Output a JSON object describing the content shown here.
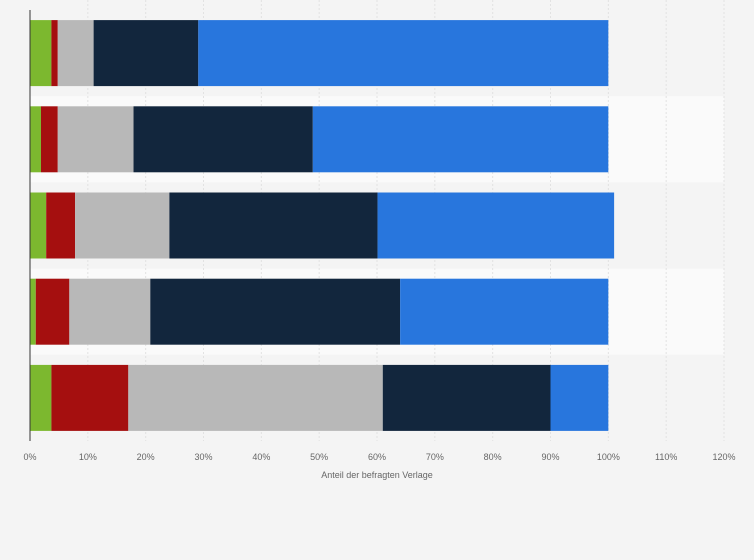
{
  "chart_data": {
    "type": "bar",
    "orientation": "horizontal",
    "stacked": true,
    "categories": [
      "",
      "",
      "",
      "",
      ""
    ],
    "series": [
      {
        "values": [
          3.7,
          1.9,
          2.8,
          1.0,
          3.7
        ],
        "color": "#7cb82f"
      },
      {
        "values": [
          1.1,
          2.9,
          5.0,
          5.8,
          13.3
        ],
        "color": "#a50f0f"
      },
      {
        "values": [
          6.2,
          13.1,
          16.3,
          14.0,
          44.0
        ],
        "color": "#b8b8b8"
      },
      {
        "values": [
          18.1,
          31.0,
          36.0,
          43.2,
          29.0
        ],
        "color": "#12263d"
      },
      {
        "values": [
          70.9,
          51.1,
          40.9,
          36.0,
          10.0
        ],
        "color": "#2876dd"
      }
    ],
    "xlim": [
      0,
      120
    ],
    "xticks": [
      "0%",
      "10%",
      "20%",
      "30%",
      "40%",
      "50%",
      "60%",
      "70%",
      "80%",
      "90%",
      "100%",
      "110%",
      "120%"
    ],
    "xlabel": "Anteil der befragten Verlage",
    "grid": true
  }
}
